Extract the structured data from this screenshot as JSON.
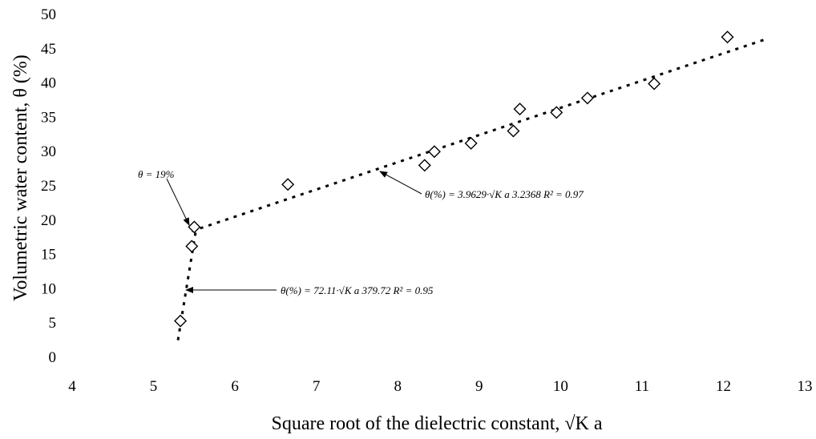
{
  "chart_data": {
    "type": "scatter",
    "xlabel": "Square root of the dielectric constant, √K a",
    "ylabel": "Volumetric water content, θ (%)",
    "xlim": [
      4,
      13
    ],
    "ylim": [
      0,
      50
    ],
    "xticks": [
      4,
      5,
      6,
      7,
      8,
      9,
      10,
      11,
      12,
      13
    ],
    "yticks": [
      0,
      5,
      10,
      15,
      20,
      25,
      30,
      35,
      40,
      45,
      50
    ],
    "grid": false,
    "marker": "open-diamond",
    "points": [
      {
        "x": 5.33,
        "y": 5.3
      },
      {
        "x": 5.47,
        "y": 16.2
      },
      {
        "x": 5.5,
        "y": 19.0
      },
      {
        "x": 6.65,
        "y": 25.2
      },
      {
        "x": 8.33,
        "y": 28.0
      },
      {
        "x": 8.45,
        "y": 30.0
      },
      {
        "x": 8.9,
        "y": 31.2
      },
      {
        "x": 9.42,
        "y": 33.0
      },
      {
        "x": 9.5,
        "y": 36.2
      },
      {
        "x": 9.95,
        "y": 35.7
      },
      {
        "x": 10.33,
        "y": 37.8
      },
      {
        "x": 11.15,
        "y": 39.9
      },
      {
        "x": 12.05,
        "y": 46.7
      }
    ],
    "fits": [
      {
        "x": [
          5.3,
          5.52
        ],
        "y": [
          2.5,
          18.5
        ],
        "style": "dotted"
      },
      {
        "x": [
          5.47,
          12.55
        ],
        "y": [
          18.4,
          46.5
        ],
        "style": "dotted"
      }
    ],
    "annotations": [
      {
        "text": "θ = 19%",
        "arrow_to": {
          "x": 5.49,
          "y": 19.0
        }
      },
      {
        "text": "θ(%) = 3.9629·√K a  3.2368   R² = 0.97",
        "arrow_to": {
          "x": 7.75,
          "y": 27.4
        }
      },
      {
        "text": "θ(%) = 72.11·√K a  379.72    R² = 0.95",
        "arrow_to": {
          "x": 5.4,
          "y": 9.8
        }
      }
    ]
  }
}
